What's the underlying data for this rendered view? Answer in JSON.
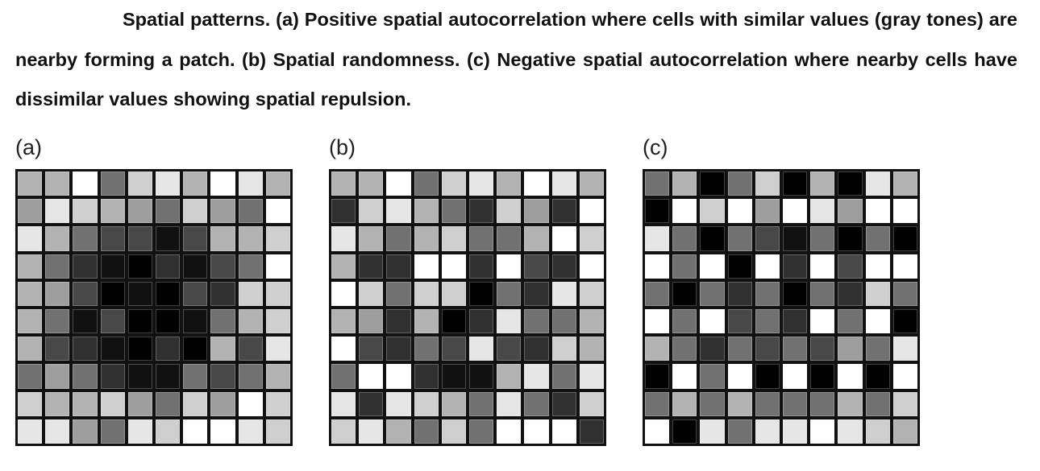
{
  "caption": "Spatial patterns. (a) Positive spatial autocorrelation where cells with similar values (gray tones) are nearby forming a patch. (b) Spatial randomness. (c) Negative spatial autocorrelation where nearby cells have dissimilar values showing spatial repulsion.",
  "palette": {
    "0": "#ffffff",
    "1": "#e6e6e6",
    "2": "#cfcfcf",
    "3": "#b3b3b3",
    "4": "#9e9e9e",
    "5": "#717171",
    "6": "#484848",
    "7": "#303030",
    "8": "#111111",
    "9": "#000000"
  },
  "panels": [
    {
      "label": "(a)",
      "cells": [
        [
          3,
          3,
          0,
          5,
          2,
          1,
          3,
          0,
          1,
          3
        ],
        [
          4,
          1,
          2,
          3,
          4,
          5,
          2,
          4,
          5,
          0
        ],
        [
          1,
          3,
          5,
          6,
          6,
          8,
          6,
          3,
          3,
          2
        ],
        [
          3,
          5,
          7,
          8,
          9,
          7,
          8,
          6,
          5,
          0
        ],
        [
          3,
          4,
          6,
          9,
          8,
          9,
          6,
          7,
          2,
          2
        ],
        [
          3,
          5,
          8,
          6,
          9,
          9,
          8,
          5,
          3,
          2
        ],
        [
          3,
          6,
          7,
          8,
          9,
          7,
          9,
          3,
          6,
          1
        ],
        [
          5,
          4,
          5,
          7,
          8,
          8,
          5,
          6,
          5,
          3
        ],
        [
          2,
          3,
          3,
          2,
          4,
          5,
          2,
          4,
          0,
          2
        ],
        [
          1,
          1,
          4,
          5,
          1,
          2,
          0,
          0,
          1,
          2
        ]
      ]
    },
    {
      "label": "(b)",
      "cells": [
        [
          3,
          3,
          0,
          5,
          2,
          1,
          3,
          0,
          1,
          3
        ],
        [
          7,
          2,
          1,
          3,
          5,
          7,
          2,
          4,
          7,
          0
        ],
        [
          1,
          3,
          5,
          3,
          2,
          5,
          5,
          3,
          0,
          2
        ],
        [
          3,
          7,
          7,
          0,
          0,
          7,
          0,
          6,
          7,
          0
        ],
        [
          0,
          2,
          5,
          2,
          2,
          9,
          5,
          7,
          1,
          2
        ],
        [
          3,
          4,
          7,
          3,
          9,
          7,
          1,
          5,
          5,
          3
        ],
        [
          0,
          6,
          7,
          5,
          6,
          1,
          6,
          7,
          2,
          3
        ],
        [
          5,
          0,
          0,
          7,
          8,
          8,
          3,
          1,
          5,
          1
        ],
        [
          1,
          7,
          1,
          2,
          3,
          5,
          1,
          5,
          7,
          2
        ],
        [
          2,
          1,
          3,
          5,
          2,
          5,
          0,
          0,
          0,
          7
        ]
      ]
    },
    {
      "label": "(c)",
      "cells": [
        [
          5,
          3,
          9,
          5,
          2,
          9,
          3,
          9,
          1,
          3
        ],
        [
          9,
          0,
          2,
          0,
          4,
          0,
          1,
          4,
          0,
          0
        ],
        [
          1,
          5,
          9,
          5,
          6,
          8,
          5,
          9,
          5,
          9
        ],
        [
          0,
          5,
          0,
          9,
          0,
          7,
          0,
          6,
          0,
          0
        ],
        [
          5,
          9,
          5,
          7,
          5,
          9,
          5,
          7,
          2,
          5
        ],
        [
          0,
          5,
          0,
          6,
          5,
          7,
          0,
          5,
          0,
          9
        ],
        [
          3,
          5,
          7,
          5,
          6,
          5,
          6,
          4,
          5,
          1
        ],
        [
          9,
          0,
          5,
          0,
          9,
          0,
          9,
          0,
          9,
          0
        ],
        [
          5,
          3,
          5,
          3,
          5,
          5,
          5,
          3,
          5,
          2
        ],
        [
          0,
          9,
          1,
          5,
          1,
          1,
          0,
          1,
          2,
          3
        ]
      ]
    }
  ]
}
